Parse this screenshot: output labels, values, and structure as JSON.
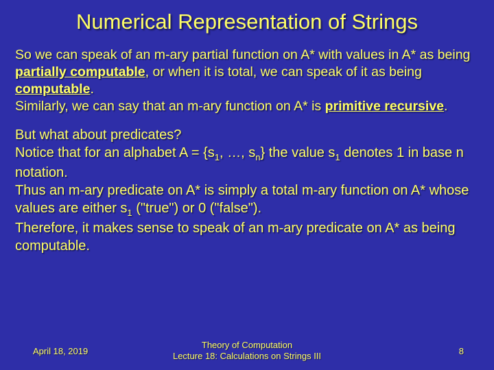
{
  "title": "Numerical Representation of Strings",
  "p1_a": "So we can speak of an m-ary partial function on A* with values in A* as being ",
  "p1_b": "partially computable",
  "p1_c": ", or when it is total, we can speak of it as being ",
  "p1_d": "computable",
  "p1_e": ".",
  "p1_f": "Similarly, we can say that an m-ary function on A* is ",
  "p1_g": "primitive recursive",
  "p1_h": ".",
  "p2_a": "But what about predicates?",
  "p2_b": "Notice that for an alphabet A = {s",
  "p2_b1": "1",
  "p2_c": ", …, s",
  "p2_c1": "n",
  "p2_d": "} the value s",
  "p2_d1": "1",
  "p2_e": " denotes 1 in base n notation.",
  "p2_f": "Thus an m-ary predicate on A* is simply a total m-ary function on A* whose values are either s",
  "p2_f1": "1",
  "p2_g": " (\"true\") or 0 (\"false\").",
  "p2_h": "Therefore, it makes sense to speak of an m-ary predicate on A* as being computable.",
  "footer_date": "April 18, 2019",
  "footer_center1": "Theory of Computation",
  "footer_center2": "Lecture 18: Calculations on Strings III",
  "footer_page": "8",
  "colors": {
    "background": "#2e2ea8",
    "text": "#ffff66"
  }
}
